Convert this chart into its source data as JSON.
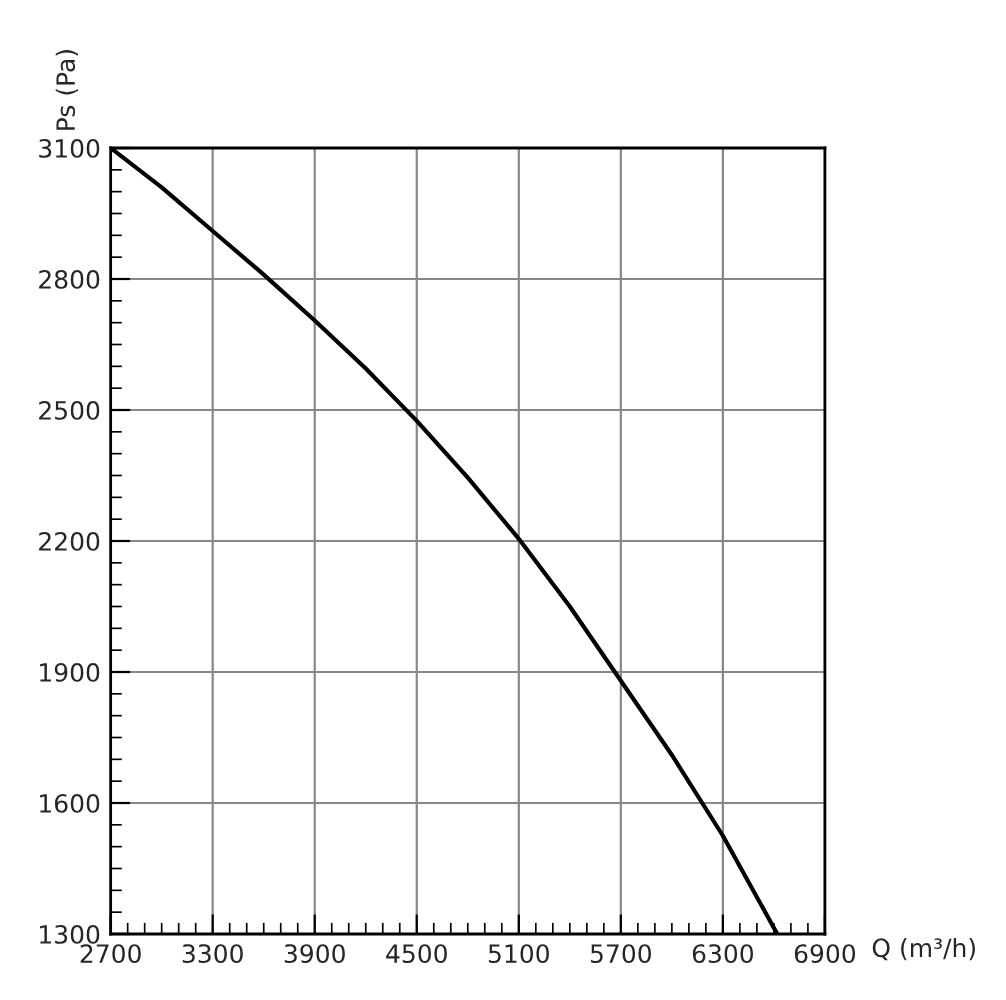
{
  "chart_data": {
    "type": "line",
    "xlabel": "Q (m³/h)",
    "ylabel": "Ps (Pa)",
    "series": [
      {
        "color": "#000000",
        "x": [
          2700,
          3000,
          3300,
          3600,
          3900,
          4200,
          4500,
          4800,
          5100,
          5400,
          5700,
          6000,
          6300,
          6620
        ],
        "values": [
          3100,
          3010,
          2910,
          2810,
          2705,
          2595,
          2475,
          2345,
          2205,
          2050,
          1880,
          1710,
          1525,
          1300
        ]
      }
    ],
    "xlim": [
      2700,
      6900
    ],
    "xticks": [
      2700,
      3300,
      3900,
      4500,
      5100,
      5700,
      6300,
      6900
    ],
    "ylim": [
      1300,
      3100
    ],
    "yticks": [
      1300,
      1600,
      1900,
      2200,
      2500,
      2800,
      3100
    ],
    "grid": true,
    "marker": "none",
    "line_style": "solid"
  }
}
